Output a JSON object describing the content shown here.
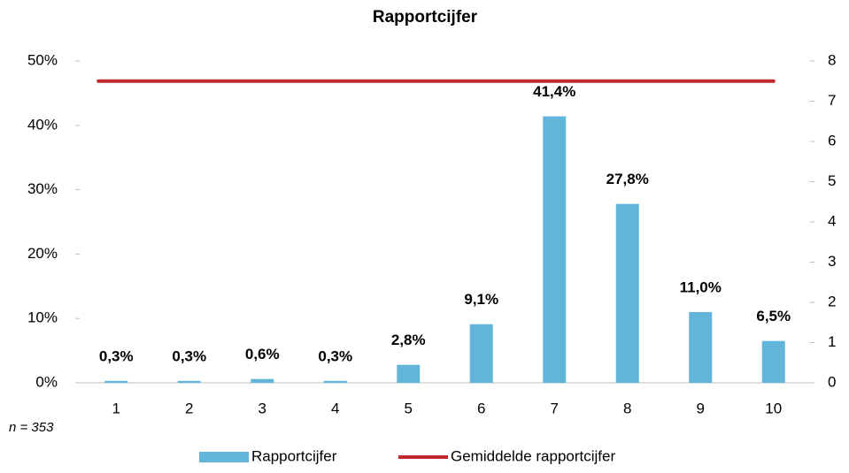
{
  "chart_data": {
    "type": "bar",
    "title": "Rapportcijfer",
    "categories": [
      "1",
      "2",
      "3",
      "4",
      "5",
      "6",
      "7",
      "8",
      "9",
      "10"
    ],
    "series": [
      {
        "name": "Rapportcijfer",
        "type": "bar",
        "color": "#61b5d9",
        "values": [
          0.3,
          0.3,
          0.6,
          0.3,
          2.8,
          9.1,
          41.4,
          27.8,
          11.0,
          6.5
        ],
        "value_labels": [
          "0,3%",
          "0,3%",
          "0,6%",
          "0,3%",
          "2,8%",
          "9,1%",
          "41,4%",
          "27,8%",
          "11,0%",
          "6,5%"
        ]
      },
      {
        "name": "Gemiddelde rapportcijfer",
        "type": "line",
        "color": "#c0282d",
        "axis": "y2",
        "values": [
          7.5,
          7.5,
          7.5,
          7.5,
          7.5,
          7.5,
          7.5,
          7.5,
          7.5,
          7.5
        ]
      }
    ],
    "ylim": [
      0,
      50
    ],
    "yticks": [
      {
        "value": 0,
        "label": "0%"
      },
      {
        "value": 10,
        "label": "10%"
      },
      {
        "value": 20,
        "label": "20%"
      },
      {
        "value": 30,
        "label": "30%"
      },
      {
        "value": 40,
        "label": "40%"
      },
      {
        "value": 50,
        "label": "50%"
      }
    ],
    "y2lim": [
      0,
      8
    ],
    "y2ticks": [
      0,
      1,
      2,
      3,
      4,
      5,
      6,
      7,
      8
    ],
    "annotation": "n = 353",
    "legend": "bottom",
    "grid": false
  }
}
